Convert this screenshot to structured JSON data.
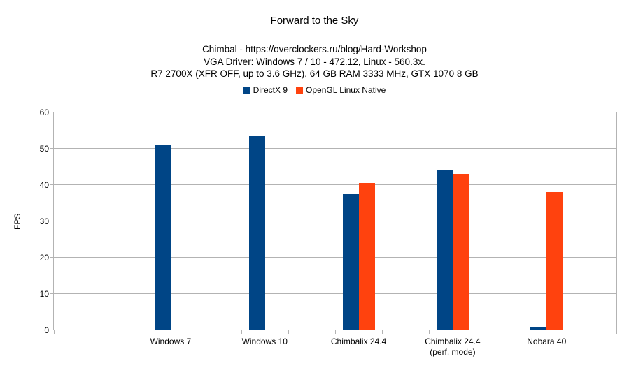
{
  "chart_data": {
    "type": "bar",
    "title": "Forward to the Sky",
    "subtitle_lines": [
      "Chimbal - https://overclockers.ru/blog/Hard-Workshop",
      "VGA Driver: Windows 7 / 10 - 472.12, Linux - 560.3x.",
      "R7 2700X (XFR OFF, up to 3.6 GHz), 64 GB RAM 3333 MHz, GTX 1070 8 GB"
    ],
    "ylabel": "FPS",
    "ylim": [
      0,
      60
    ],
    "yticks": [
      0,
      10,
      20,
      30,
      40,
      50,
      60
    ],
    "grid": "horizontal",
    "legend_position": "top-center",
    "categories": [
      "Windows 7",
      "Windows 10",
      "Chimbalix 24.4",
      "Chimbalix 24.4\n(perf. mode)",
      "Nobara 40"
    ],
    "series": [
      {
        "name": "DirectX 9",
        "color": "#004586",
        "values": [
          51,
          53.5,
          37.5,
          44,
          1
        ]
      },
      {
        "name": "OpenGL Linux Native",
        "color": "#FF420E",
        "values": [
          null,
          null,
          40.5,
          43,
          38
        ]
      }
    ]
  },
  "colors": {
    "grid": "#b3b3b3",
    "axis": "#b3b3b3",
    "text": "#000000"
  }
}
